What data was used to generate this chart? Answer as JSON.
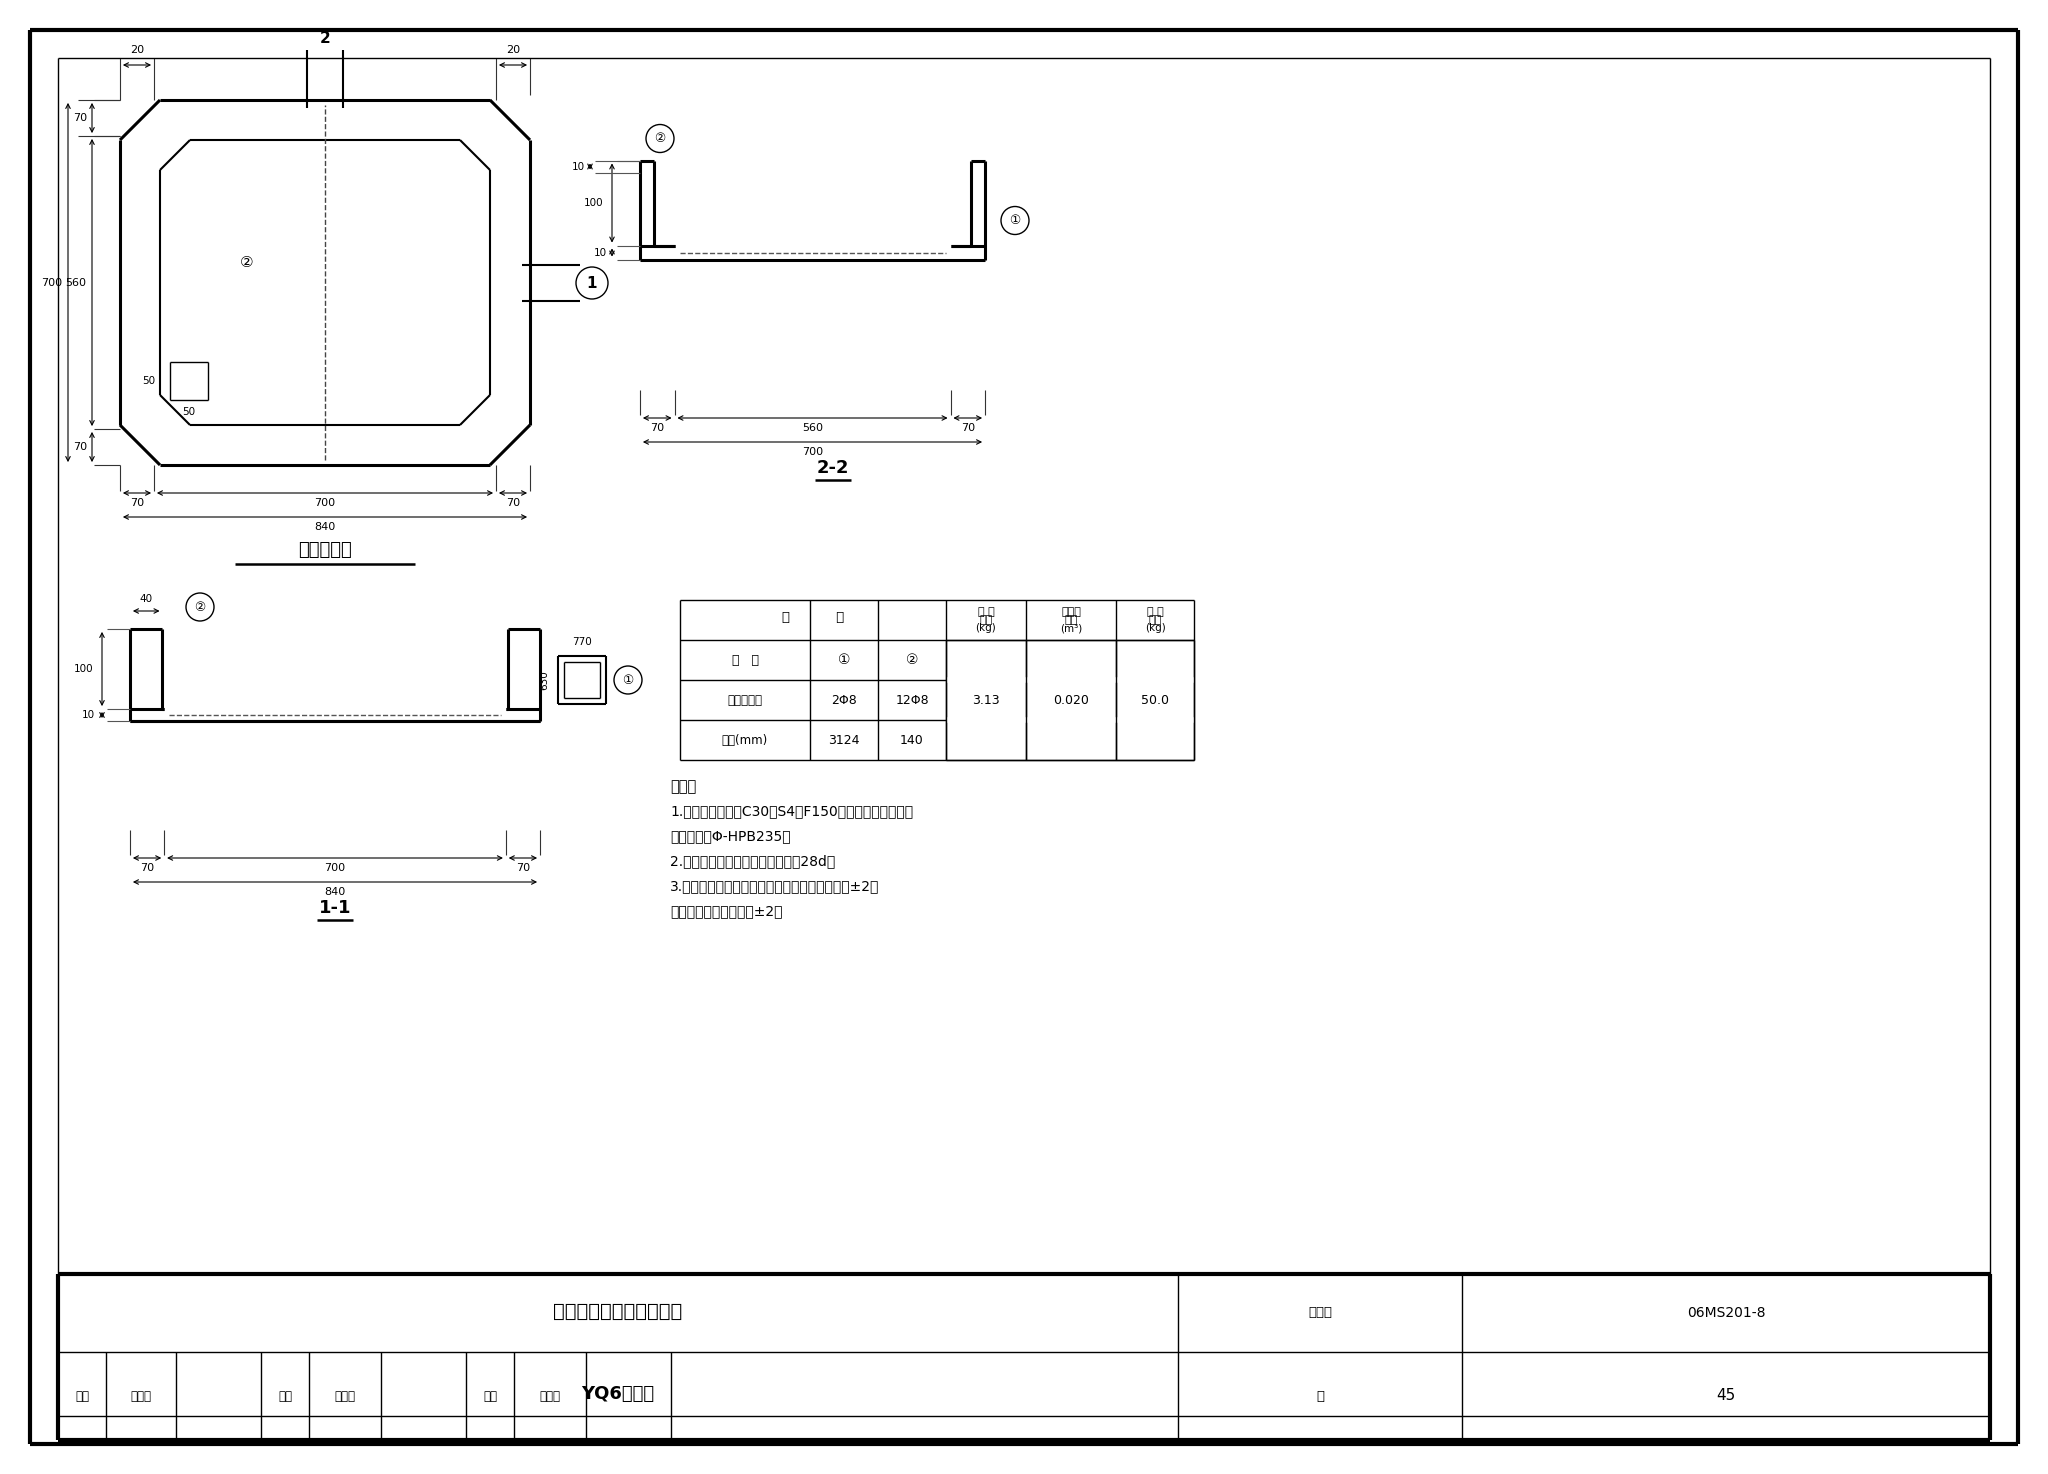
{
  "bg_color": "#ffffff",
  "line_color": "#000000",
  "title_main": "预制混凝土装配式雨水口",
  "title_sub": "YQ6配筋图",
  "fig_num": "06MS201-8",
  "page": "45",
  "label_shenhe": "寡核",
  "label_wangjiaoshan": "王憎山",
  "label_jiaodui": "校对",
  "label_shengkejie": "盛奎节",
  "label_sheji": "设计",
  "label_wenlianhui": "温丽晖",
  "label_ye": "页",
  "plan_label": "平面配筋图",
  "section_1_label": "1-1",
  "section_2_label": "2-2",
  "note_title": "说明：",
  "note_1": "1.　材料：混凝土C30、S4、F150（根据需要选用）；",
  "note_1b": "　　　鈢筋Φ-HPB235。",
  "note_2": "2.　环向鈢筋居中放置；摆接长度28d。",
  "note_3": "3.　构件表面要求平直、压光；构件尺寸误差：±2；",
  "note_3b": "　　对角线尺寸误差：±2。",
  "tujihao": "图集号"
}
